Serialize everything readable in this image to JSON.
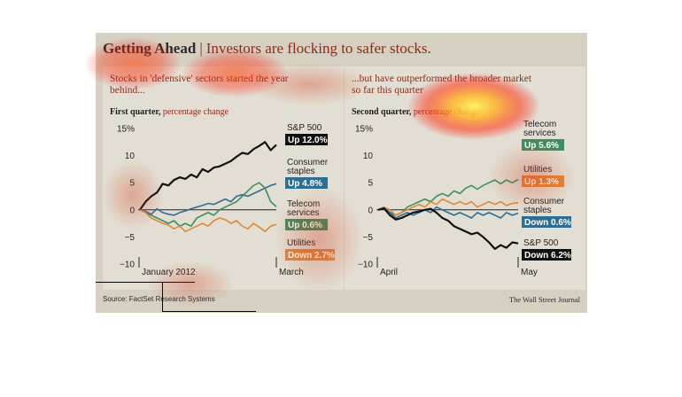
{
  "header": {
    "title": "Getting Ahead",
    "separator": "|",
    "subtitle": "Investors are flocking to safer stocks."
  },
  "footer": {
    "source": "Source: FactSet Research Systems",
    "credit": "The Wall Street Journal"
  },
  "colors": {
    "sp500": "#111111",
    "consumer_staples": "#2f6e93",
    "telecom": "#3e8f5e",
    "utilities": "#e0883a",
    "panel_bg": "#e3ded3",
    "outer_bg": "#d6d0c2",
    "accent": "#8a2a1a"
  },
  "chart_data": [
    {
      "type": "line",
      "caption": "Stocks in 'defensive' sectors started the year behind...",
      "subtitle_bold": "First quarter,",
      "subtitle": " percentage change",
      "x_start_label": "January 2012",
      "x_end_label": "March",
      "ylim": [
        -10,
        15
      ],
      "yticks": [
        15,
        10,
        5,
        0,
        -5,
        -10
      ],
      "ytick_labels": [
        "15%",
        "10",
        "5",
        "0",
        "−5",
        "−10"
      ],
      "grid": false,
      "legend_placement": "right",
      "series": [
        {
          "key": "sp500",
          "name": "S&P 500",
          "change": "Up 12.0%",
          "values": [
            0,
            1.5,
            2.5,
            3.2,
            4.8,
            4.5,
            5.5,
            6.0,
            5.7,
            6.5,
            6.0,
            7.5,
            7.0,
            7.8,
            8.0,
            8.5,
            9.0,
            9.8,
            10.5,
            10.3,
            11.2,
            11.8,
            12.5,
            11.0,
            12.0
          ]
        },
        {
          "key": "consumer_staples",
          "name": "Consumer staples",
          "change": "Up 4.8%",
          "values": [
            0,
            -0.3,
            -0.8,
            0.2,
            -0.5,
            -0.8,
            -1.0,
            -0.5,
            -0.2,
            0.2,
            0.5,
            0.8,
            1.2,
            1.0,
            1.5,
            2.0,
            1.5,
            2.5,
            2.8,
            2.5,
            3.0,
            3.5,
            4.0,
            4.5,
            4.8
          ]
        },
        {
          "key": "telecom",
          "name": "Telecom services",
          "change": "Up 0.6%",
          "values": [
            0,
            -0.5,
            -1.0,
            -1.5,
            -2.0,
            -2.5,
            -2.0,
            -3.0,
            -2.5,
            -3.0,
            -1.5,
            -1.0,
            -0.5,
            -1.0,
            0.0,
            0.5,
            1.0,
            1.5,
            2.5,
            3.5,
            4.5,
            5.0,
            4.0,
            1.5,
            0.6
          ]
        },
        {
          "key": "utilities",
          "name": "Utilities",
          "change": "Down 2.7%",
          "values": [
            0,
            -0.5,
            -1.5,
            -2.0,
            -2.5,
            -2.8,
            -3.5,
            -3.0,
            -4.0,
            -3.5,
            -3.0,
            -2.5,
            -3.0,
            -2.0,
            -1.5,
            -1.8,
            -2.5,
            -2.0,
            -3.0,
            -3.5,
            -2.5,
            -3.2,
            -4.0,
            -3.0,
            -2.7
          ]
        }
      ]
    },
    {
      "type": "line",
      "caption": "...but have outperformed the broader market so far this quarter",
      "subtitle_bold": "Second quarter,",
      "subtitle": " percentage change",
      "x_start_label": "April",
      "x_end_label": "May",
      "ylim": [
        -10,
        15
      ],
      "yticks": [
        15,
        10,
        5,
        0,
        -5,
        -10
      ],
      "ytick_labels": [
        "15%",
        "10",
        "5",
        "0",
        "−5",
        "−10"
      ],
      "grid": false,
      "legend_placement": "right",
      "series": [
        {
          "key": "telecom",
          "name": "Telecom services",
          "change": "Up 5.6%",
          "values": [
            0,
            0.5,
            -0.5,
            -1.0,
            -0.5,
            0.5,
            1.0,
            1.5,
            2.0,
            1.5,
            2.5,
            3.0,
            2.5,
            3.5,
            3.0,
            4.0,
            4.5,
            3.8,
            4.5,
            5.0,
            5.5,
            4.8,
            5.5,
            5.0,
            5.6
          ]
        },
        {
          "key": "utilities",
          "name": "Utilities",
          "change": "Up 1.3%",
          "values": [
            0,
            0.5,
            0.0,
            -1.0,
            -0.5,
            0.0,
            0.5,
            1.0,
            0.5,
            1.5,
            1.0,
            2.0,
            1.5,
            1.0,
            1.5,
            1.0,
            1.5,
            0.5,
            1.0,
            1.5,
            1.0,
            1.5,
            0.8,
            1.2,
            1.3
          ]
        },
        {
          "key": "consumer_staples",
          "name": "Consumer staples",
          "change": "Down 0.6%",
          "values": [
            0,
            0.3,
            -0.5,
            -1.5,
            -1.0,
            -0.5,
            -1.0,
            -0.5,
            0.0,
            -0.5,
            0.5,
            0.0,
            -0.5,
            -1.0,
            -0.5,
            -1.0,
            -1.5,
            -0.5,
            -1.0,
            -0.5,
            -1.0,
            -1.5,
            -0.5,
            -1.0,
            -0.6
          ]
        },
        {
          "key": "sp500",
          "name": "S&P 500",
          "change": "Down 6.2%",
          "values": [
            0,
            0.3,
            -1.0,
            -1.8,
            -1.5,
            -1.0,
            -0.5,
            -0.3,
            0.0,
            0.2,
            -0.5,
            -1.5,
            -2.0,
            -3.0,
            -3.5,
            -4.0,
            -4.5,
            -4.2,
            -5.0,
            -6.0,
            -7.2,
            -6.5,
            -7.0,
            -6.0,
            -6.2
          ]
        }
      ]
    }
  ]
}
